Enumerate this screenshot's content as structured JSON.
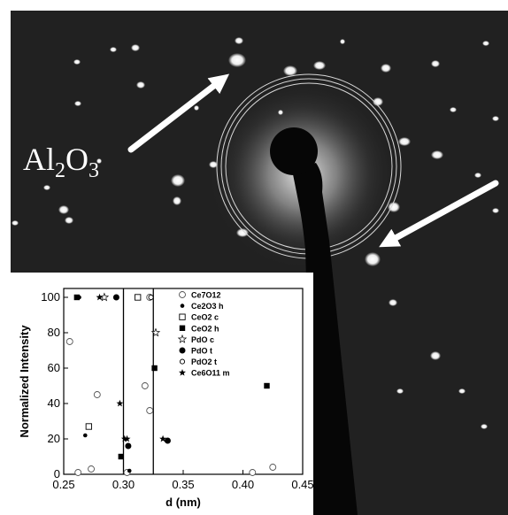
{
  "micrograph": {
    "phase_label_base": "Al",
    "phase_label_sub1": "2",
    "phase_label_mid": "O",
    "phase_label_sub2": "3"
  },
  "colors": {
    "background": "#1a1a1a",
    "spot": "#ffffff",
    "ring": "#d8d8d8",
    "beam_stop": "#050505"
  },
  "chart_data": {
    "type": "scatter",
    "xlabel": "d (nm)",
    "ylabel": "Normalized Intensity",
    "xlim": [
      0.25,
      0.45
    ],
    "ylim": [
      0,
      105
    ],
    "xticks": [
      "0.25",
      "0.30",
      "0.35",
      "0.40",
      "0.45"
    ],
    "yticks": [
      "0",
      "20",
      "40",
      "60",
      "80",
      "100"
    ],
    "legend_position": "top-right",
    "vlines": [
      0.3,
      0.325
    ],
    "series": [
      {
        "name": "Ce7O12",
        "marker": "circle-open",
        "points": [
          [
            0.255,
            75
          ],
          [
            0.262,
            1
          ],
          [
            0.273,
            3
          ],
          [
            0.278,
            45
          ],
          [
            0.303,
            1
          ],
          [
            0.318,
            50
          ],
          [
            0.322,
            36
          ],
          [
            0.322,
            100
          ],
          [
            0.408,
            1
          ],
          [
            0.425,
            4
          ]
        ]
      },
      {
        "name": "Ce2O3 h",
        "marker": "circle-filled-small",
        "points": [
          [
            0.263,
            100
          ],
          [
            0.268,
            22
          ],
          [
            0.305,
            2
          ],
          [
            0.337,
            19
          ]
        ]
      },
      {
        "name": "CeO2 c",
        "marker": "square-open",
        "points": [
          [
            0.271,
            27
          ],
          [
            0.312,
            100
          ]
        ]
      },
      {
        "name": "CeO2 h",
        "marker": "square-filled",
        "points": [
          [
            0.261,
            100
          ],
          [
            0.298,
            10
          ],
          [
            0.326,
            60
          ],
          [
            0.42,
            50
          ]
        ]
      },
      {
        "name": "PdO c",
        "marker": "star-open",
        "points": [
          [
            0.284,
            100
          ],
          [
            0.327,
            80
          ]
        ]
      },
      {
        "name": "PdO t",
        "marker": "circle-filled",
        "points": [
          [
            0.294,
            100
          ],
          [
            0.304,
            16
          ],
          [
            0.337,
            19
          ]
        ]
      },
      {
        "name": "PdO2 t",
        "marker": "circle-open-small",
        "points": [
          [
            0.323,
            100
          ]
        ]
      },
      {
        "name": "Ce6O11 m",
        "marker": "star-filled",
        "points": [
          [
            0.28,
            100
          ],
          [
            0.297,
            40
          ],
          [
            0.301,
            20
          ],
          [
            0.303,
            20
          ],
          [
            0.333,
            20
          ]
        ]
      }
    ]
  }
}
